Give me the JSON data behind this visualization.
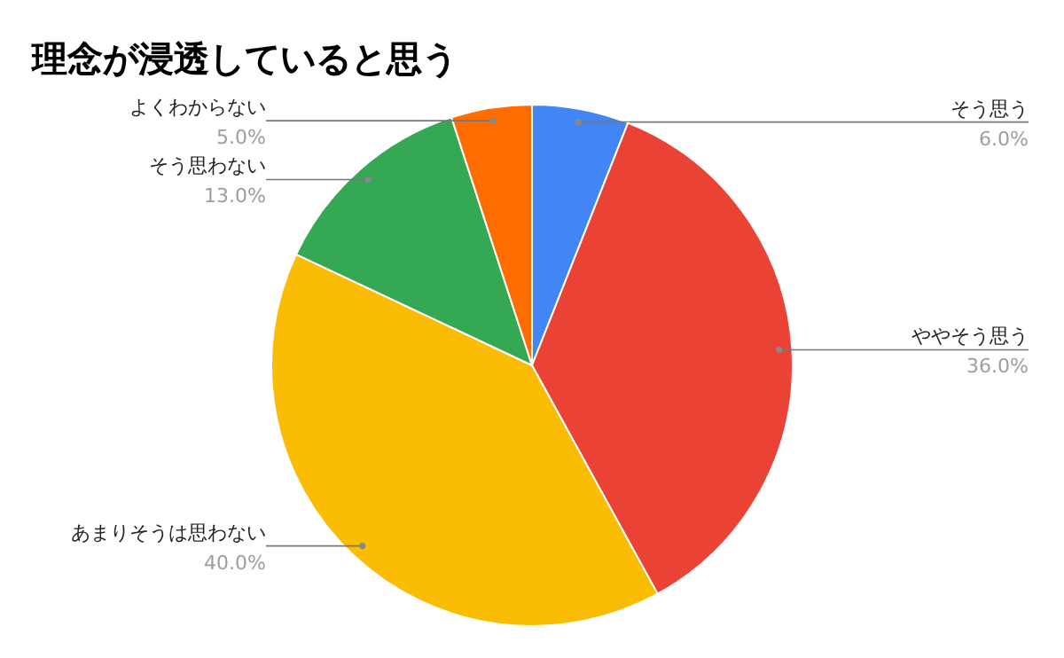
{
  "chart_data": {
    "type": "pie",
    "title": "理念が浸透していると思う",
    "categories": [
      "そう思う",
      "ややそう思う",
      "あまりそうは思わない",
      "そう思わない",
      "よくわからない"
    ],
    "values": [
      6,
      36,
      40,
      13,
      5
    ],
    "value_labels": [
      "6.0%",
      "36.0%",
      "40.0%",
      "13.0%",
      "5.0%"
    ],
    "colors": [
      "#4285f4",
      "#ea4335",
      "#fbbc04",
      "#34a853",
      "#ff6d01"
    ]
  }
}
